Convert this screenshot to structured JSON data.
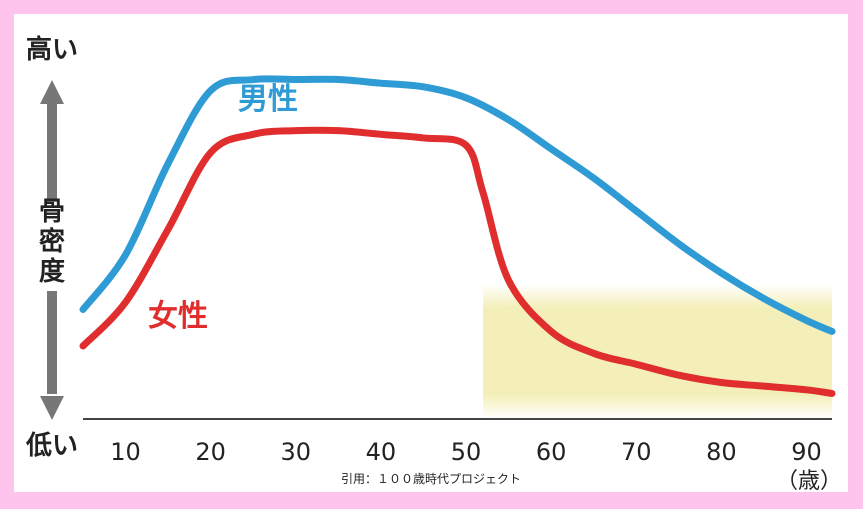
{
  "chart_data": {
    "type": "line",
    "ylabel": "骨密度",
    "y_high_label": "高い",
    "y_low_label": "低い",
    "x_unit": "（歳）",
    "xlim": [
      5,
      93
    ],
    "ylim": [
      0,
      100
    ],
    "x_ticks": [
      10,
      20,
      30,
      40,
      50,
      60,
      70,
      80,
      90
    ],
    "highlight": {
      "x_from": 52,
      "x_to": 93,
      "color": "#f4efb8"
    },
    "series": [
      {
        "name": "男性",
        "color": "#2e9bd5",
        "x": [
          5,
          10,
          15,
          20,
          25,
          30,
          35,
          40,
          45,
          50,
          55,
          60,
          65,
          70,
          75,
          80,
          85,
          90,
          93
        ],
        "y": [
          30,
          45,
          70,
          90,
          93,
          93,
          93,
          92,
          91,
          88,
          82,
          74,
          66,
          57,
          48,
          40,
          33,
          27,
          24
        ]
      },
      {
        "name": "女性",
        "color": "#e02e2e",
        "x": [
          5,
          10,
          15,
          20,
          25,
          30,
          35,
          40,
          45,
          50,
          52,
          55,
          60,
          65,
          70,
          75,
          80,
          85,
          90,
          93
        ],
        "y": [
          20,
          32,
          52,
          73,
          78,
          79,
          79,
          78,
          77,
          75,
          62,
          38,
          24,
          18,
          15,
          12,
          10,
          9,
          8,
          7
        ]
      }
    ]
  },
  "citation": "引用：１００歳時代プロジェクト"
}
